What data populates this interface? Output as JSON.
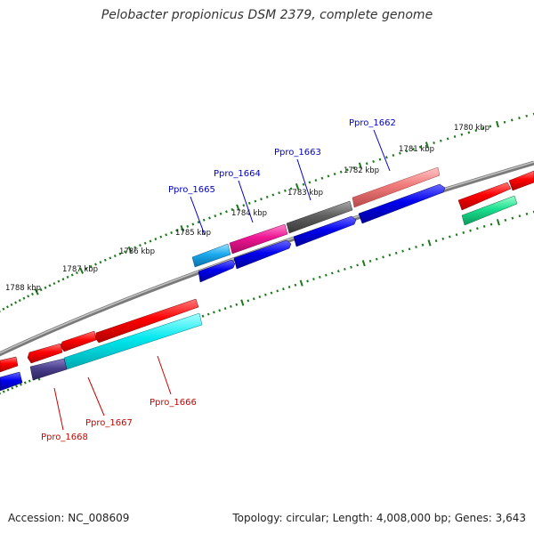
{
  "title": "Pelobacter propionicus DSM 2379, complete genome",
  "footer": {
    "accession": "Accession: NC_008609",
    "summary": "Topology: circular; Length: 4,008,000 bp; Genes: 3,643"
  },
  "kbp_ticks": [
    "1780 kbp",
    "1781 kbp",
    "1782 kbp",
    "1783 kbp",
    "1784 kbp",
    "1785 kbp",
    "1786 kbp",
    "1787 kbp",
    "1788 kbp"
  ],
  "gene_labels": {
    "ppro_1662": "Ppro_1662",
    "ppro_1663": "Ppro_1663",
    "ppro_1664": "Ppro_1664",
    "ppro_1665": "Ppro_1665",
    "ppro_1666": "Ppro_1666",
    "ppro_1667": "Ppro_1667",
    "ppro_1668": "Ppro_1668"
  },
  "colors": {
    "forward_label": "#0000cc",
    "reverse_label": "#cc0000",
    "backbone": "#808080",
    "tick": "#1a7a1a"
  }
}
